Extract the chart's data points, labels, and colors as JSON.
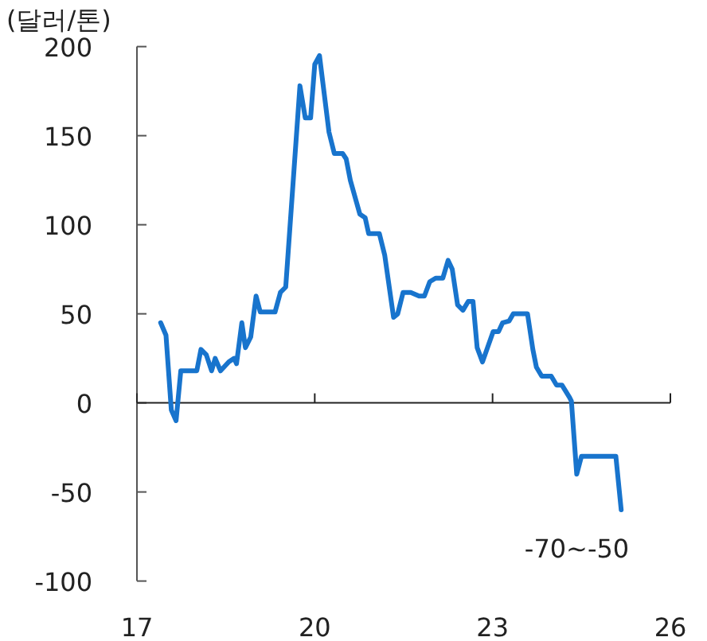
{
  "chart_data": {
    "type": "line",
    "ylabel": "(달러/톤)",
    "xlim": [
      17,
      26
    ],
    "xticks": [
      17,
      20,
      23,
      26
    ],
    "ylim": [
      -100,
      200
    ],
    "yticks": [
      -100,
      -50,
      0,
      50,
      100,
      150,
      200
    ],
    "marker": "none",
    "line_style": "solid",
    "series": [
      {
        "color": "#1874cd",
        "x": [
          17.4,
          17.49,
          17.58,
          17.66,
          17.74,
          18.01,
          18.08,
          18.17,
          18.26,
          18.32,
          18.41,
          18.55,
          18.64,
          18.68,
          18.77,
          18.83,
          18.92,
          19.01,
          19.08,
          19.33,
          19.42,
          19.51,
          19.75,
          19.84,
          19.93,
          20.0,
          20.08,
          20.24,
          20.33,
          20.47,
          20.53,
          20.6,
          20.76,
          20.85,
          20.91,
          21.09,
          21.18,
          21.33,
          21.4,
          21.49,
          21.62,
          21.76,
          21.85,
          21.94,
          22.04,
          22.16,
          22.25,
          22.32,
          22.41,
          22.5,
          22.59,
          22.67,
          22.74,
          22.83,
          23.01,
          23.1,
          23.17,
          23.28,
          23.35,
          23.59,
          23.68,
          23.74,
          23.83,
          23.99,
          24.08,
          24.17,
          24.3,
          24.33,
          24.42,
          24.5,
          25.08,
          25.17
        ],
        "values": [
          45,
          38,
          -4,
          -10,
          18,
          18,
          30,
          27,
          18,
          25,
          18,
          23,
          25,
          22,
          45,
          31,
          37,
          60,
          51,
          51,
          62,
          65,
          178,
          160,
          160,
          190,
          195,
          152,
          140,
          140,
          137,
          125,
          106,
          104,
          95,
          95,
          83,
          48,
          50,
          62,
          62,
          60,
          60,
          68,
          70,
          70,
          80,
          75,
          55,
          52,
          57,
          57,
          31,
          23,
          40,
          40,
          45,
          46,
          50,
          50,
          30,
          20,
          15,
          15,
          10,
          10,
          3,
          1,
          -40,
          -30,
          -30,
          -60
        ]
      }
    ],
    "annotations": [
      {
        "text": "-70~-50",
        "x": 25.17,
        "y": -60
      }
    ]
  }
}
